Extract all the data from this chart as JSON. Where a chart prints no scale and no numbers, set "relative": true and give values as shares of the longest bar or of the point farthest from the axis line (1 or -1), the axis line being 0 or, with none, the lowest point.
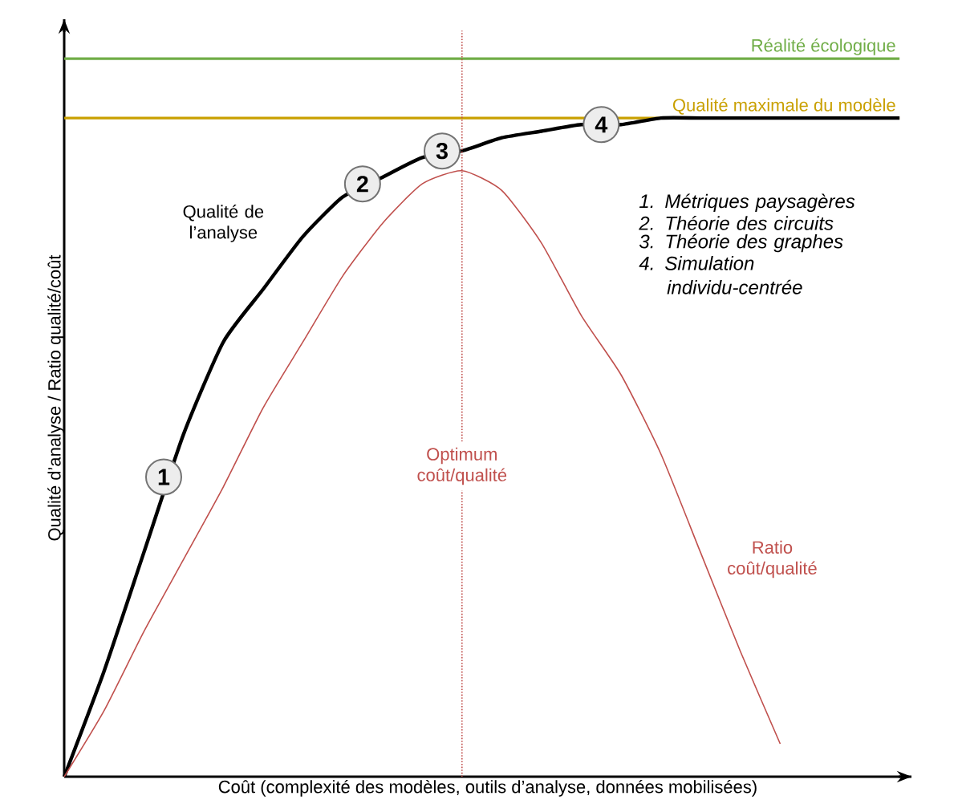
{
  "chart_data": {
    "type": "line",
    "relative": true,
    "xlabel": "Coût (complexité des modèles, outils d’analyse, données mobilisées)",
    "ylabel": "Qualité d’analyse / Ratio qualité/coût",
    "categories": [
      null,
      null,
      null,
      null,
      null,
      null,
      null,
      null,
      null,
      null,
      null,
      null,
      null,
      null,
      null,
      null,
      null,
      null,
      null,
      null,
      null,
      null
    ],
    "series": [
      {
        "name": "Qualité de l’analyse",
        "color": "#000000",
        "values": [
          0,
          0.16,
          0.34,
          0.52,
          0.66,
          0.74,
          0.82,
          0.88,
          0.91,
          0.94,
          0.95,
          0.97,
          0.98,
          0.99,
          0.99,
          1.0,
          1.0,
          1.0,
          1.0,
          1.0,
          1.0,
          1.0
        ]
      },
      {
        "name": "Ratio coût/qualité",
        "color": "#c0504d",
        "values": [
          0,
          0.1,
          0.22,
          0.33,
          0.44,
          0.56,
          0.66,
          0.76,
          0.84,
          0.9,
          0.92,
          0.89,
          0.81,
          0.7,
          0.61,
          0.49,
          0.34,
          0.19,
          0.05,
          null,
          null,
          null
        ]
      }
    ],
    "ref_lines": [
      {
        "axis": "y",
        "value": 1.09,
        "label": "Réalité écologique",
        "color": "#70ad47"
      },
      {
        "axis": "y",
        "value": 1.0,
        "label": "Qualité maximale du modèle",
        "color": "#c9a000"
      }
    ],
    "annotations": [
      "1",
      "2",
      "3",
      "4",
      "Optimum coût/qualité",
      "1. Métriques paysagères",
      "2. Théorie des circuits",
      "3. Théorie des graphes",
      "4. Simulation individu-centrée"
    ]
  }
}
